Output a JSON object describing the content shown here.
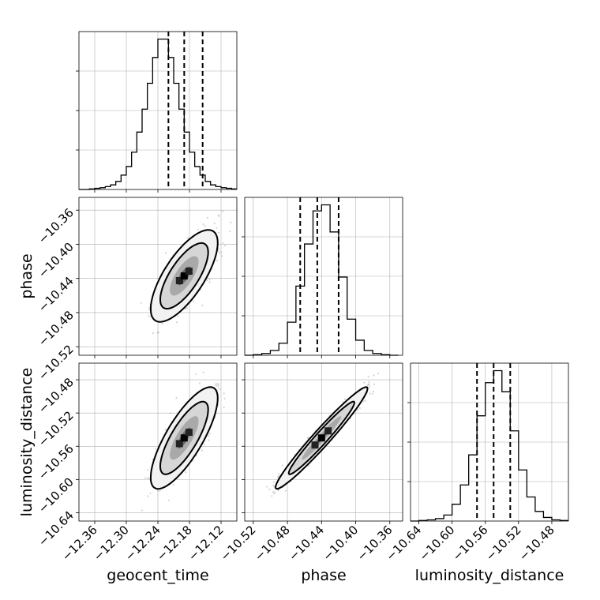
{
  "chart_data": {
    "type": "corner",
    "parameters": [
      "geocent_time",
      "phase",
      "luminosity_distance"
    ],
    "ranges": {
      "geocent_time": [
        -12.39,
        -12.09
      ],
      "phase": [
        -10.53,
        -10.345
      ],
      "luminosity_distance": [
        -10.65,
        -10.46
      ]
    },
    "ticks": {
      "geocent_time": [
        -12.36,
        -12.3,
        -12.24,
        -12.18,
        -12.12
      ],
      "phase": [
        -10.52,
        -10.48,
        -10.44,
        -10.4,
        -10.36
      ],
      "luminosity_distance": [
        -10.64,
        -10.6,
        -10.56,
        -10.52,
        -10.48
      ]
    },
    "tick_labels": {
      "geocent_time": [
        "−12.36",
        "−12.30",
        "−12.24",
        "−12.18",
        "−12.12"
      ],
      "phase": [
        "−10.52",
        "−10.48",
        "−10.44",
        "−10.40",
        "−10.36"
      ],
      "luminosity_distance": [
        "−10.64",
        "−10.60",
        "−10.56",
        "−10.52",
        "−10.48"
      ]
    },
    "quantiles": {
      "geocent_time": [
        -12.22,
        -12.19,
        -12.155
      ],
      "phase": [
        -10.465,
        -10.445,
        -10.42
      ],
      "luminosity_distance": [
        -10.57,
        -10.55,
        -10.53
      ]
    },
    "histograms": {
      "geocent_time": {
        "x": [
          -12.39,
          -12.38,
          -12.37,
          -12.36,
          -12.35,
          -12.34,
          -12.33,
          -12.32,
          -12.31,
          -12.3,
          -12.29,
          -12.28,
          -12.27,
          -12.26,
          -12.25,
          -12.24,
          -12.23,
          -12.22,
          -12.21,
          -12.2,
          -12.19,
          -12.18,
          -12.17,
          -12.16,
          -12.15,
          -12.14,
          -12.13,
          -12.12,
          -12.11,
          -12.1,
          -12.09
        ],
        "counts": [
          0,
          0,
          1,
          2,
          3,
          5,
          8,
          14,
          25,
          40,
          65,
          100,
          140,
          185,
          230,
          262,
          262,
          230,
          185,
          140,
          100,
          65,
          40,
          25,
          14,
          8,
          5,
          3,
          2,
          1,
          0
        ]
      },
      "phase": {
        "x": [
          -10.53,
          -10.52,
          -10.51,
          -10.5,
          -10.49,
          -10.48,
          -10.47,
          -10.46,
          -10.45,
          -10.44,
          -10.43,
          -10.42,
          -10.41,
          -10.4,
          -10.39,
          -10.38,
          -10.37,
          -10.36,
          -10.35
        ],
        "counts": [
          0,
          1,
          3,
          8,
          20,
          55,
          115,
          185,
          240,
          250,
          205,
          130,
          60,
          25,
          8,
          3,
          1,
          0,
          0
        ]
      },
      "luminosity_distance": {
        "x": [
          -10.65,
          -10.64,
          -10.63,
          -10.62,
          -10.61,
          -10.6,
          -10.59,
          -10.58,
          -10.57,
          -10.56,
          -10.55,
          -10.54,
          -10.53,
          -10.52,
          -10.51,
          -10.5,
          -10.49,
          -10.48,
          -10.47,
          -10.46
        ],
        "counts": [
          0,
          1,
          2,
          4,
          10,
          28,
          60,
          110,
          175,
          230,
          250,
          215,
          150,
          85,
          40,
          16,
          6,
          2,
          1,
          0
        ]
      }
    },
    "pairs": [
      {
        "x": "geocent_time",
        "y": "phase",
        "mean": [
          -12.19,
          -10.437
        ],
        "sd": [
          0.026,
          0.022
        ],
        "rho": 0.72
      },
      {
        "x": "geocent_time",
        "y": "luminosity_distance",
        "mean": [
          -12.19,
          -10.55
        ],
        "sd": [
          0.026,
          0.025
        ],
        "rho": 0.78
      },
      {
        "x": "phase",
        "y": "luminosity_distance",
        "mean": [
          -10.44,
          -10.55
        ],
        "sd": [
          0.022,
          0.025
        ],
        "rho": 0.97
      }
    ],
    "grid": true
  }
}
